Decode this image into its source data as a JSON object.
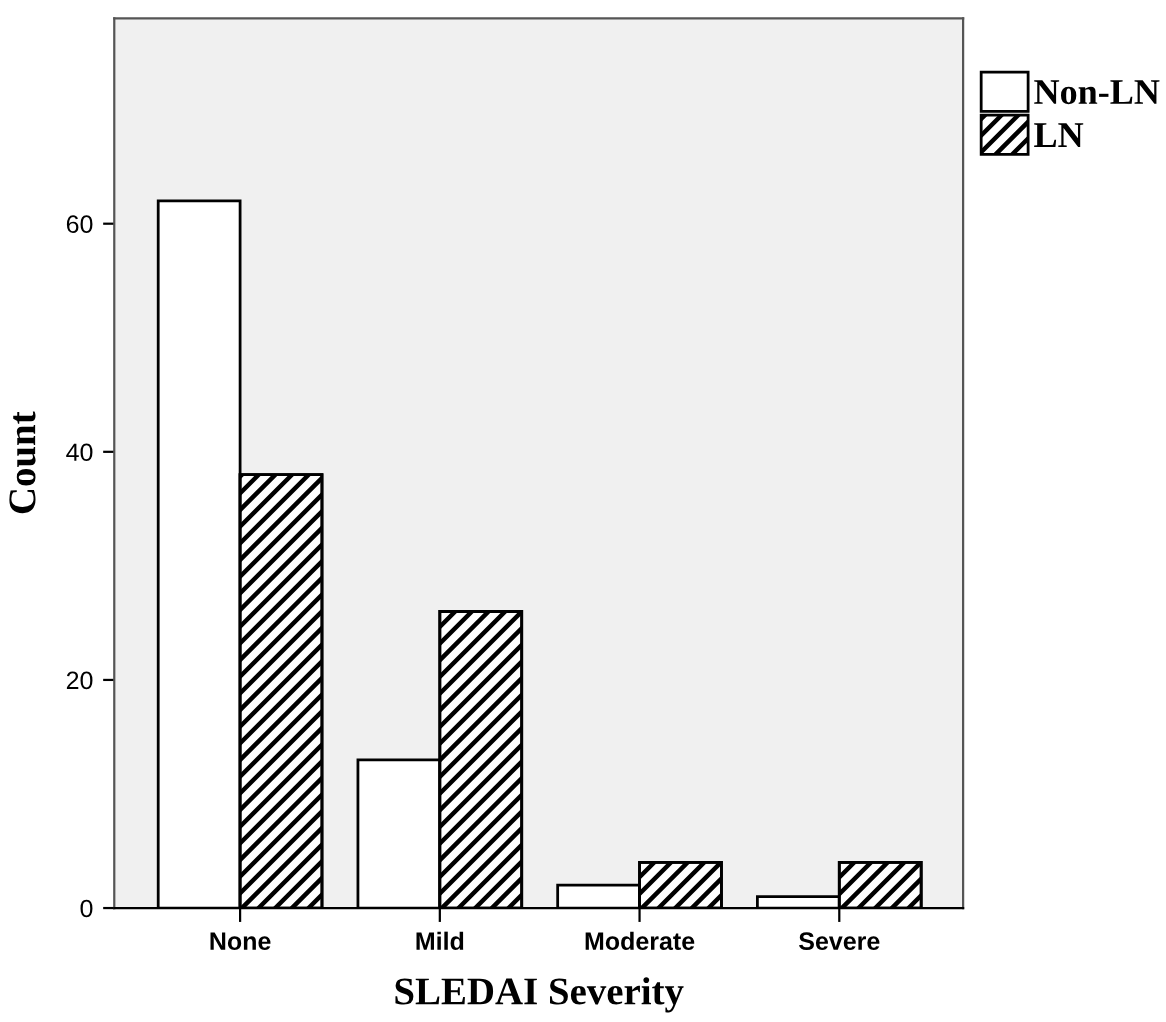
{
  "chart_data": {
    "type": "bar",
    "xlabel": "SLEDAI Severity",
    "ylabel": "Count",
    "categories": [
      "None",
      "Mild",
      "Moderate",
      "Severe"
    ],
    "series": [
      {
        "name": "Non-LN",
        "color": "#ffffff",
        "values": [
          62,
          13,
          2,
          1
        ]
      },
      {
        "name": "LN",
        "color": "#000000",
        "values": [
          38,
          26,
          4,
          4
        ]
      }
    ],
    "ylim": [
      0,
      78
    ],
    "yticks": [
      0,
      20,
      40,
      60
    ],
    "grid": false,
    "legend": "top right"
  }
}
